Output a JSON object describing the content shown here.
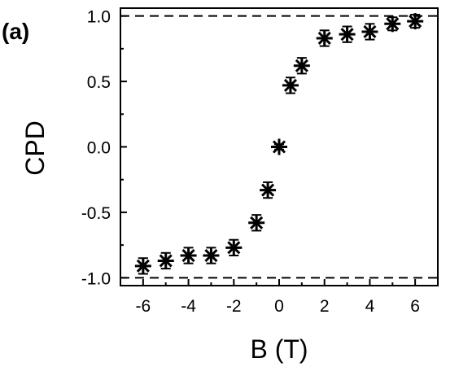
{
  "chart_data": {
    "type": "scatter",
    "panel_label": "(a)",
    "xlabel": "B (T)",
    "ylabel": "CPD",
    "xlim": [
      -7,
      7
    ],
    "ylim": [
      -1.06,
      1.06
    ],
    "x_ticks": [
      -6,
      -4,
      -2,
      0,
      2,
      4,
      6
    ],
    "x_tick_labels": [
      "-6",
      "-4",
      "-2",
      "0",
      "2",
      "4",
      "6"
    ],
    "y_ticks": [
      -1.0,
      -0.5,
      0.0,
      0.5,
      1.0
    ],
    "y_tick_labels": [
      "-1.0",
      "-0.5",
      "0.0",
      "0.5",
      "1.0"
    ],
    "reference_lines": [
      -1.0,
      1.0
    ],
    "marker": "asterisk",
    "grid": false,
    "legend": "none",
    "series": [
      {
        "x": [
          -6,
          -5,
          -4,
          -3,
          -2,
          -1,
          -0.5,
          0,
          0.5,
          1,
          2,
          3,
          4,
          5,
          6
        ],
        "y": [
          -0.91,
          -0.87,
          -0.83,
          -0.83,
          -0.77,
          -0.58,
          -0.33,
          0.0,
          0.47,
          0.62,
          0.83,
          0.86,
          0.88,
          0.94,
          0.96
        ],
        "error": [
          0.06,
          0.06,
          0.06,
          0.06,
          0.06,
          0.06,
          0.06,
          0.02,
          0.06,
          0.06,
          0.06,
          0.06,
          0.06,
          0.05,
          0.05
        ]
      }
    ]
  }
}
